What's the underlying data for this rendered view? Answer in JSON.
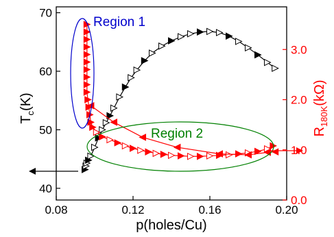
{
  "chart_data": {
    "type": "scatter",
    "xlabel": "p(holes/Cu)",
    "ylabel_left": "T",
    "ylabel_left_sub": "c",
    "ylabel_left_unit": "(K)",
    "ylabel_right": "R",
    "ylabel_right_sub": "180K",
    "ylabel_right_unit": "(kΩ)",
    "xlim": [
      0.08,
      0.2
    ],
    "ylim_left": [
      38,
      71
    ],
    "ylim_right": [
      0.0,
      3.85
    ],
    "x_ticks": [
      0.08,
      0.12,
      0.16,
      0.2
    ],
    "x_tick_labels": [
      "0.08",
      "0.12",
      "0.16",
      "0.20"
    ],
    "y_left_ticks": [
      40,
      50,
      60,
      70
    ],
    "y_left_tick_labels": [
      "40",
      "50",
      "60",
      "70"
    ],
    "y_right_ticks": [
      0.0,
      1.0,
      2.0,
      3.0
    ],
    "y_right_tick_labels": [
      "0.0",
      "1.0",
      "2.0",
      "3.0"
    ],
    "colors": {
      "tc": "#000000",
      "r": "#ff0000",
      "region1": "#0000cc",
      "region2": "#008000"
    },
    "annotations": [
      {
        "text": "Region 1",
        "color": "#0000cc"
      },
      {
        "text": "Region 2",
        "color": "#008000"
      }
    ],
    "series": [
      {
        "axis": "left",
        "color": "#000000",
        "points": [
          [
            0.095,
            43.2
          ],
          [
            0.0955,
            43.8
          ],
          [
            0.096,
            44.3
          ],
          [
            0.0968,
            44.8
          ],
          [
            0.098,
            45.5
          ],
          [
            0.1,
            47.0
          ],
          [
            0.102,
            48.6
          ],
          [
            0.104,
            50.0
          ],
          [
            0.106,
            51.2
          ],
          [
            0.108,
            52.4
          ],
          [
            0.11,
            53.7
          ],
          [
            0.113,
            55.6
          ],
          [
            0.116,
            57.3
          ],
          [
            0.119,
            58.9
          ],
          [
            0.122,
            60.2
          ],
          [
            0.126,
            61.8
          ],
          [
            0.13,
            63.1
          ],
          [
            0.135,
            64.3
          ],
          [
            0.14,
            65.2
          ],
          [
            0.145,
            65.9
          ],
          [
            0.15,
            66.4
          ],
          [
            0.155,
            66.7
          ],
          [
            0.16,
            66.8
          ],
          [
            0.165,
            66.6
          ],
          [
            0.17,
            66.0
          ],
          [
            0.175,
            65.1
          ],
          [
            0.18,
            64.0
          ],
          [
            0.185,
            62.8
          ],
          [
            0.19,
            61.5
          ],
          [
            0.194,
            60.5
          ]
        ]
      },
      {
        "axis": "right",
        "color": "#ff0000",
        "points": [
          [
            0.096,
            3.5
          ],
          [
            0.096,
            3.35
          ],
          [
            0.096,
            3.2
          ],
          [
            0.096,
            3.05
          ],
          [
            0.096,
            2.9
          ],
          [
            0.096,
            2.75
          ],
          [
            0.096,
            2.6
          ],
          [
            0.096,
            2.45
          ],
          [
            0.096,
            2.3
          ],
          [
            0.096,
            2.15
          ],
          [
            0.0965,
            2.0
          ],
          [
            0.097,
            1.85
          ],
          [
            0.0975,
            1.7
          ],
          [
            0.098,
            1.55
          ],
          [
            0.099,
            1.45
          ],
          [
            0.101,
            1.35
          ],
          [
            0.104,
            1.26
          ],
          [
            0.108,
            1.2
          ],
          [
            0.112,
            1.14
          ],
          [
            0.116,
            1.08
          ],
          [
            0.12,
            1.03
          ],
          [
            0.124,
            0.99
          ],
          [
            0.128,
            0.96
          ],
          [
            0.132,
            0.93
          ],
          [
            0.136,
            0.91
          ],
          [
            0.14,
            0.89
          ],
          [
            0.145,
            0.88
          ],
          [
            0.15,
            0.87
          ],
          [
            0.155,
            0.87
          ],
          [
            0.16,
            0.88
          ],
          [
            0.165,
            0.89
          ],
          [
            0.17,
            0.9
          ],
          [
            0.175,
            0.92
          ],
          [
            0.18,
            0.94
          ],
          [
            0.185,
            0.97
          ],
          [
            0.19,
            1.02
          ],
          [
            0.193,
            1.08
          ]
        ]
      },
      {
        "axis": "right",
        "color": "#ff0000",
        "points": [
          [
            0.098,
            1.88
          ],
          [
            0.11,
            1.55
          ],
          [
            0.125,
            1.25
          ],
          [
            0.143,
            1.05
          ],
          [
            0.165,
            0.92
          ],
          [
            0.18,
            0.9
          ],
          [
            0.19,
            0.95
          ],
          [
            0.194,
            0.96
          ]
        ]
      }
    ]
  }
}
